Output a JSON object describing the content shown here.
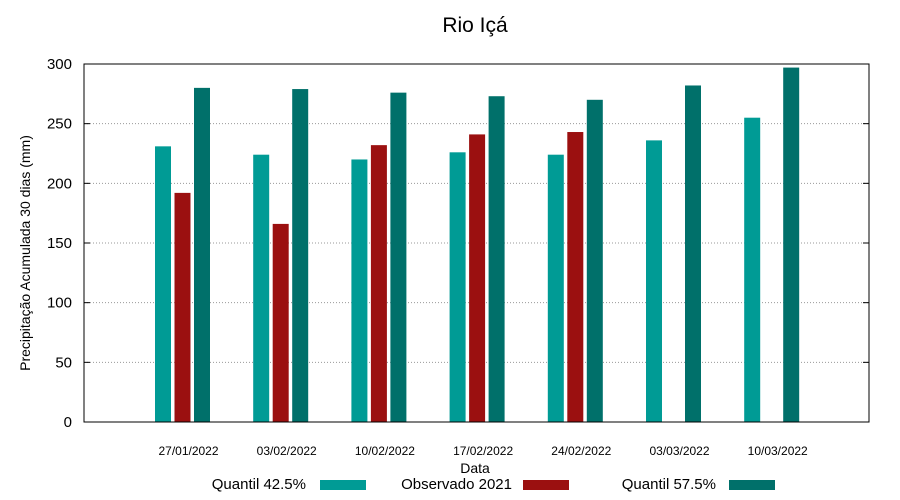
{
  "chart_data": {
    "type": "bar",
    "title": "Rio Içá",
    "xlabel": "Data",
    "ylabel": "Precipitação Acumulada 30 dias (mm)",
    "ylim": [
      0,
      300
    ],
    "yticks": [
      0,
      50,
      100,
      150,
      200,
      250,
      300
    ],
    "grid": true,
    "legend_position": "bottom",
    "categories": [
      "27/01/2022",
      "03/02/2022",
      "10/02/2022",
      "17/02/2022",
      "24/02/2022",
      "03/03/2022",
      "10/03/2022"
    ],
    "series": [
      {
        "name": "Quantil 42.5%",
        "color": "#009b95",
        "values": [
          231,
          224,
          220,
          226,
          224,
          236,
          255
        ]
      },
      {
        "name": "Observado 2021",
        "color": "#9b1010",
        "values": [
          192,
          166,
          232,
          241,
          243,
          null,
          null
        ]
      },
      {
        "name": "Quantil 57.5%",
        "color": "#00706a",
        "values": [
          280,
          279,
          276,
          273,
          270,
          282,
          297
        ]
      }
    ]
  }
}
